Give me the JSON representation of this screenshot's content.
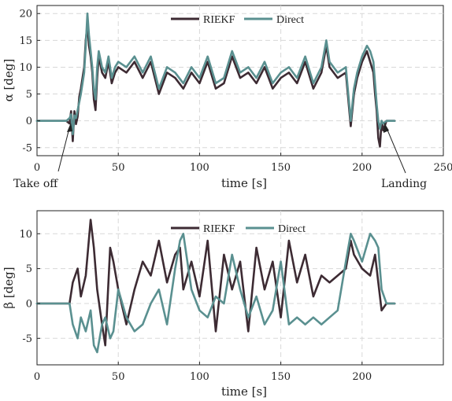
{
  "colors": {
    "riekf": "#3d2b33",
    "direct": "#5a9090"
  },
  "chart_data": [
    {
      "type": "line",
      "ylabel": "α [deg]",
      "xlabel": "time [s]",
      "xlim": [
        0,
        250
      ],
      "ylim": [
        -6.5,
        21.5
      ],
      "xticks": [
        0,
        50,
        100,
        150,
        200,
        250
      ],
      "yticks": [
        -5,
        0,
        5,
        10,
        15,
        20
      ],
      "grid": true,
      "legend": "top-center",
      "annotations": [
        {
          "text": "Take off",
          "x": 20
        },
        {
          "text": "Landing",
          "x": 212
        }
      ],
      "x": [
        0,
        5,
        10,
        15,
        18,
        20,
        21,
        22,
        23,
        24,
        25,
        26,
        27,
        28,
        29,
        30,
        31,
        32,
        33,
        34,
        35,
        36,
        37,
        38,
        40,
        42,
        44,
        46,
        48,
        50,
        55,
        60,
        65,
        70,
        75,
        80,
        85,
        90,
        95,
        100,
        105,
        110,
        115,
        120,
        125,
        130,
        135,
        140,
        145,
        150,
        155,
        160,
        165,
        170,
        175,
        178,
        180,
        185,
        190,
        193,
        195,
        197,
        200,
        203,
        205,
        207,
        208,
        209,
        210,
        211,
        212,
        213,
        215,
        218,
        220
      ],
      "series": [
        {
          "name": "RIEKF",
          "values": [
            0,
            0,
            0,
            0,
            0,
            -0.5,
            1.8,
            -3.8,
            1.8,
            -0.6,
            0.8,
            4.5,
            6,
            8,
            10,
            15,
            18,
            14,
            12,
            9,
            4,
            2,
            8,
            12,
            9,
            8,
            11,
            7,
            9,
            10,
            9,
            11,
            8,
            11,
            5,
            9,
            8,
            6,
            9,
            7,
            11,
            6,
            7,
            12,
            8,
            9,
            7,
            10,
            6,
            8,
            9,
            7,
            11,
            6,
            9,
            14,
            10,
            8,
            9,
            -1,
            5,
            8,
            11,
            13,
            11,
            9,
            5,
            1.8,
            -3.2,
            -4.8,
            0,
            -1.8,
            0,
            0,
            0
          ]
        },
        {
          "name": "Direct",
          "values": [
            0,
            0,
            0,
            0,
            0,
            0.5,
            1.2,
            -2.5,
            1,
            0.5,
            2,
            3.5,
            5,
            7,
            9,
            14,
            20,
            16,
            13,
            10,
            6,
            4,
            10,
            13,
            10,
            9,
            12,
            8,
            10,
            11,
            10,
            12,
            9,
            12,
            6,
            10,
            9,
            7,
            10,
            8,
            12,
            7,
            8,
            13,
            9,
            10,
            8,
            11,
            7,
            9,
            10,
            8,
            12,
            7,
            10,
            15,
            11,
            9,
            10,
            0,
            6,
            9,
            12,
            14,
            13,
            11,
            7,
            3,
            0,
            -1.5,
            0,
            -0.5,
            0,
            0,
            0
          ]
        }
      ]
    },
    {
      "type": "line",
      "ylabel": "β [deg]",
      "xlabel": "time [s]",
      "xlim": [
        0,
        250
      ],
      "ylim": [
        -8.8,
        13.3
      ],
      "xticks": [
        0,
        50,
        100,
        150,
        200
      ],
      "yticks": [
        -5,
        0,
        5,
        10
      ],
      "grid": true,
      "legend": "top-center",
      "x": [
        0,
        5,
        10,
        15,
        20,
        22,
        25,
        27,
        30,
        33,
        35,
        37,
        40,
        42,
        45,
        47,
        50,
        55,
        60,
        65,
        70,
        75,
        80,
        85,
        88,
        90,
        95,
        100,
        105,
        110,
        115,
        120,
        125,
        130,
        135,
        140,
        145,
        150,
        155,
        160,
        165,
        170,
        175,
        180,
        185,
        190,
        193,
        195,
        200,
        205,
        208,
        210,
        212,
        215,
        220
      ],
      "series": [
        {
          "name": "RIEKF",
          "values": [
            0,
            0,
            0,
            0,
            0,
            3,
            5,
            1,
            4,
            12,
            8,
            2,
            -3,
            -6,
            8,
            6,
            2,
            -3,
            2,
            6,
            4,
            9,
            3,
            7,
            8,
            2,
            6,
            1,
            9,
            -4,
            7,
            2,
            6,
            -4,
            8,
            2,
            6,
            -2,
            9,
            3,
            7,
            1,
            4,
            3,
            4,
            5,
            9,
            7,
            5,
            4,
            7,
            3,
            -1,
            0,
            0
          ]
        },
        {
          "name": "Direct",
          "values": [
            0,
            0,
            0,
            0,
            0,
            -3,
            -5,
            -2,
            -4,
            -1,
            -6,
            -7,
            -3,
            -2,
            -5,
            -4,
            2,
            -2,
            -4,
            -3,
            0,
            2,
            -3,
            5,
            9,
            10,
            2,
            -1,
            -2,
            1,
            0,
            7,
            2,
            -2,
            1,
            -3,
            -1,
            6,
            -3,
            -2,
            -3,
            -2,
            -3,
            -2,
            -1,
            6,
            10,
            9,
            6,
            10,
            9,
            8,
            2,
            0,
            0
          ]
        }
      ]
    }
  ],
  "legend_labels": {
    "riekf": "RIEKF",
    "direct": "Direct"
  }
}
